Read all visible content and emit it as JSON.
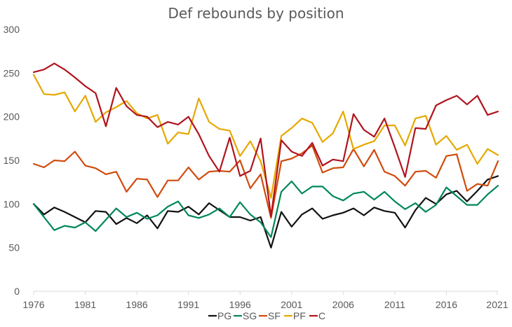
{
  "chart_data": {
    "type": "line",
    "title": "Def rebounds by position",
    "xlabel": "",
    "ylabel": "",
    "ylim": [
      0,
      300
    ],
    "y_ticks": [
      "0",
      "50",
      "100",
      "150",
      "200",
      "250",
      "300"
    ],
    "x_ticks": [
      "1976",
      "1981",
      "1986",
      "1991",
      "1996",
      "2001",
      "2006",
      "2011",
      "2016",
      "2021"
    ],
    "grid": false,
    "legend_position": "bottom",
    "x": [
      1976,
      1977,
      1978,
      1979,
      1980,
      1981,
      1982,
      1983,
      1984,
      1985,
      1986,
      1987,
      1988,
      1989,
      1990,
      1991,
      1992,
      1993,
      1994,
      1995,
      1996,
      1997,
      1998,
      1999,
      2000,
      2001,
      2002,
      2003,
      2004,
      2005,
      2006,
      2007,
      2008,
      2009,
      2010,
      2011,
      2012,
      2013,
      2014,
      2015,
      2016,
      2017,
      2018,
      2019,
      2020,
      2021
    ],
    "series": [
      {
        "name": "PG",
        "color": "#111111",
        "values": [
          100,
          88,
          96,
          91,
          85,
          79,
          92,
          91,
          77,
          84,
          78,
          87,
          72,
          92,
          91,
          97,
          88,
          101,
          93,
          85,
          85,
          81,
          85,
          50,
          91,
          74,
          88,
          95,
          83,
          87,
          90,
          95,
          87,
          96,
          92,
          90,
          73,
          93,
          107,
          100,
          111,
          115,
          103,
          115,
          128,
          132
        ]
      },
      {
        "name": "SG",
        "color": "#00875a",
        "values": [
          100,
          85,
          70,
          75,
          73,
          79,
          69,
          82,
          95,
          85,
          90,
          83,
          87,
          97,
          103,
          87,
          84,
          88,
          95,
          85,
          102,
          88,
          79,
          62,
          114,
          126,
          112,
          120,
          120,
          109,
          104,
          112,
          114,
          105,
          114,
          103,
          94,
          101,
          91,
          99,
          119,
          109,
          99,
          99,
          111,
          121
        ]
      },
      {
        "name": "SF",
        "color": "#d04b0c",
        "values": [
          146,
          142,
          150,
          149,
          160,
          144,
          141,
          134,
          137,
          114,
          129,
          128,
          108,
          127,
          127,
          142,
          128,
          137,
          138,
          137,
          150,
          118,
          134,
          84,
          149,
          152,
          158,
          167,
          136,
          141,
          142,
          163,
          143,
          162,
          137,
          132,
          121,
          137,
          138,
          130,
          155,
          157,
          115,
          123,
          121,
          149
        ]
      },
      {
        "name": "PF",
        "color": "#e6a800",
        "values": [
          248,
          226,
          225,
          228,
          206,
          224,
          194,
          205,
          211,
          218,
          204,
          198,
          202,
          169,
          182,
          180,
          221,
          194,
          186,
          184,
          155,
          172,
          149,
          107,
          178,
          187,
          198,
          193,
          171,
          181,
          206,
          163,
          168,
          172,
          190,
          190,
          167,
          198,
          201,
          168,
          178,
          162,
          168,
          146,
          163,
          156
        ]
      },
      {
        "name": "C",
        "color": "#b0141e",
        "values": [
          251,
          254,
          261,
          254,
          245,
          235,
          227,
          189,
          233,
          212,
          202,
          200,
          188,
          194,
          191,
          200,
          180,
          155,
          137,
          176,
          132,
          138,
          175,
          86,
          173,
          160,
          155,
          170,
          144,
          151,
          149,
          203,
          185,
          177,
          198,
          165,
          131,
          187,
          186,
          213,
          219,
          224,
          214,
          224,
          202,
          206
        ]
      }
    ]
  }
}
